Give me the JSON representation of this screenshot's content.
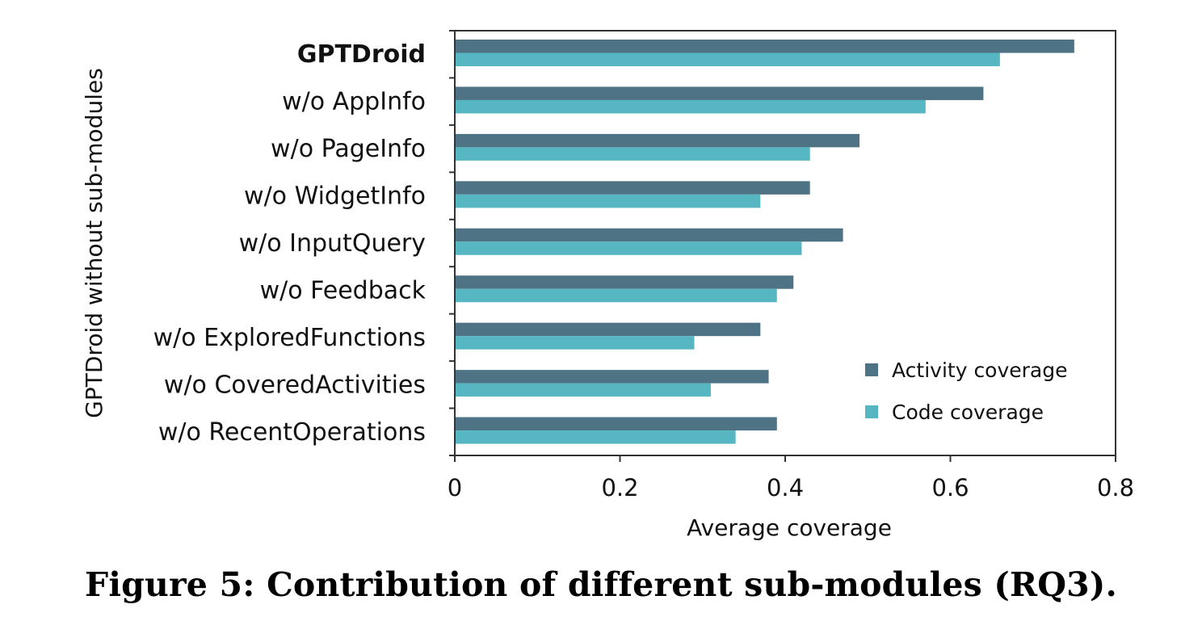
{
  "chart_data": {
    "type": "bar",
    "orientation": "horizontal",
    "categories": [
      "GPTDroid",
      "w/o AppInfo",
      "w/o PageInfo",
      "w/o WidgetInfo",
      "w/o InputQuery",
      "w/o Feedback",
      "w/o ExploredFunctions",
      "w/o CoveredActivities",
      "w/o RecentOperations"
    ],
    "bold_categories": [
      "GPTDroid"
    ],
    "series": [
      {
        "name": "Activity coverage",
        "color": "#4d7385",
        "values": [
          0.75,
          0.64,
          0.49,
          0.43,
          0.47,
          0.41,
          0.37,
          0.38,
          0.39
        ]
      },
      {
        "name": "Code coverage",
        "color": "#56b7c2",
        "values": [
          0.66,
          0.57,
          0.43,
          0.37,
          0.42,
          0.39,
          0.29,
          0.31,
          0.34
        ]
      }
    ],
    "xlabel": "Average coverage",
    "ylabel": "GPTDroid without sub-modules",
    "xlim": [
      0,
      0.8
    ],
    "xticks": [
      0,
      0.2,
      0.4,
      0.6,
      0.8
    ],
    "xtick_labels": [
      "0",
      "0.2",
      "0.4",
      "0.6",
      "0.8"
    ],
    "grid": false,
    "legend_position": "bottom-right"
  },
  "caption": "Figure 5: Contribution of different sub-modules (RQ3)."
}
